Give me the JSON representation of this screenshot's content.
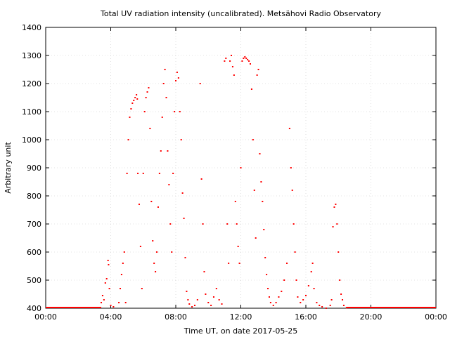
{
  "chart_data": {
    "type": "scatter",
    "title": "Total UV radiation intensity (uncalibrated). Metsähovi Radio Observatory",
    "xlabel": "Time UT, on date 2017-05-25",
    "ylabel": "Arbitrary unit",
    "xlim": [
      "00:00",
      "24:00"
    ],
    "ylim": [
      400,
      1400
    ],
    "x_ticks": [
      "00:00",
      "04:00",
      "08:00",
      "12:00",
      "16:00",
      "20:00",
      "00:00"
    ],
    "y_ticks": [
      400,
      500,
      600,
      700,
      800,
      900,
      1000,
      1100,
      1200,
      1300,
      1400
    ],
    "grid": true,
    "marker_color": "#ff0000",
    "points": [
      [
        "03:25",
        420
      ],
      [
        "03:30",
        445
      ],
      [
        "03:35",
        430
      ],
      [
        "03:40",
        490
      ],
      [
        "03:45",
        505
      ],
      [
        "03:50",
        570
      ],
      [
        "03:52",
        555
      ],
      [
        "03:55",
        470
      ],
      [
        "04:00",
        410
      ],
      [
        "04:10",
        405
      ],
      [
        "04:30",
        420
      ],
      [
        "04:35",
        470
      ],
      [
        "04:40",
        520
      ],
      [
        "04:45",
        560
      ],
      [
        "04:50",
        600
      ],
      [
        "04:55",
        420
      ],
      [
        "05:00",
        880
      ],
      [
        "05:05",
        1000
      ],
      [
        "05:10",
        1080
      ],
      [
        "05:15",
        1110
      ],
      [
        "05:20",
        1130
      ],
      [
        "05:25",
        1140
      ],
      [
        "05:30",
        1150
      ],
      [
        "05:35",
        1160
      ],
      [
        "05:38",
        1145
      ],
      [
        "05:40",
        880
      ],
      [
        "05:45",
        770
      ],
      [
        "05:50",
        620
      ],
      [
        "05:55",
        470
      ],
      [
        "06:00",
        880
      ],
      [
        "06:05",
        1100
      ],
      [
        "06:10",
        1150
      ],
      [
        "06:15",
        1170
      ],
      [
        "06:20",
        1185
      ],
      [
        "06:25",
        1040
      ],
      [
        "06:30",
        780
      ],
      [
        "06:35",
        640
      ],
      [
        "06:40",
        560
      ],
      [
        "06:45",
        530
      ],
      [
        "06:50",
        600
      ],
      [
        "06:55",
        760
      ],
      [
        "07:00",
        880
      ],
      [
        "07:05",
        960
      ],
      [
        "07:10",
        1080
      ],
      [
        "07:15",
        1200
      ],
      [
        "07:20",
        1250
      ],
      [
        "07:25",
        1150
      ],
      [
        "07:30",
        960
      ],
      [
        "07:35",
        840
      ],
      [
        "07:40",
        700
      ],
      [
        "07:45",
        600
      ],
      [
        "07:50",
        880
      ],
      [
        "07:55",
        1100
      ],
      [
        "08:00",
        1210
      ],
      [
        "08:05",
        1240
      ],
      [
        "08:10",
        1220
      ],
      [
        "08:15",
        1100
      ],
      [
        "08:20",
        1000
      ],
      [
        "08:25",
        810
      ],
      [
        "08:30",
        720
      ],
      [
        "08:35",
        580
      ],
      [
        "08:40",
        460
      ],
      [
        "08:45",
        430
      ],
      [
        "08:50",
        415
      ],
      [
        "09:00",
        405
      ],
      [
        "09:10",
        410
      ],
      [
        "09:20",
        430
      ],
      [
        "09:30",
        1200
      ],
      [
        "09:35",
        860
      ],
      [
        "09:40",
        700
      ],
      [
        "09:45",
        530
      ],
      [
        "09:50",
        450
      ],
      [
        "10:00",
        420
      ],
      [
        "10:10",
        410
      ],
      [
        "10:20",
        440
      ],
      [
        "10:30",
        470
      ],
      [
        "10:40",
        430
      ],
      [
        "10:50",
        415
      ],
      [
        "11:00",
        1280
      ],
      [
        "11:05",
        1290
      ],
      [
        "11:10",
        700
      ],
      [
        "11:15",
        560
      ],
      [
        "11:20",
        1280
      ],
      [
        "11:25",
        1300
      ],
      [
        "11:30",
        1260
      ],
      [
        "11:35",
        1230
      ],
      [
        "11:40",
        780
      ],
      [
        "11:45",
        700
      ],
      [
        "11:50",
        620
      ],
      [
        "11:55",
        560
      ],
      [
        "12:00",
        900
      ],
      [
        "12:05",
        1280
      ],
      [
        "12:10",
        1290
      ],
      [
        "12:15",
        1295
      ],
      [
        "12:20",
        1290
      ],
      [
        "12:25",
        1285
      ],
      [
        "12:30",
        1280
      ],
      [
        "12:35",
        1270
      ],
      [
        "12:40",
        1180
      ],
      [
        "12:45",
        1000
      ],
      [
        "12:50",
        820
      ],
      [
        "12:55",
        650
      ],
      [
        "13:00",
        1230
      ],
      [
        "13:05",
        1250
      ],
      [
        "13:10",
        950
      ],
      [
        "13:15",
        850
      ],
      [
        "13:20",
        780
      ],
      [
        "13:25",
        680
      ],
      [
        "13:30",
        580
      ],
      [
        "13:35",
        520
      ],
      [
        "13:40",
        470
      ],
      [
        "13:45",
        440
      ],
      [
        "13:50",
        420
      ],
      [
        "14:00",
        410
      ],
      [
        "14:10",
        420
      ],
      [
        "14:20",
        440
      ],
      [
        "14:30",
        460
      ],
      [
        "14:40",
        500
      ],
      [
        "14:50",
        560
      ],
      [
        "15:00",
        1040
      ],
      [
        "15:05",
        900
      ],
      [
        "15:10",
        820
      ],
      [
        "15:15",
        700
      ],
      [
        "15:20",
        600
      ],
      [
        "15:25",
        500
      ],
      [
        "15:30",
        440
      ],
      [
        "15:40",
        420
      ],
      [
        "15:50",
        430
      ],
      [
        "16:00",
        445
      ],
      [
        "16:10",
        480
      ],
      [
        "16:20",
        530
      ],
      [
        "16:25",
        560
      ],
      [
        "16:30",
        470
      ],
      [
        "16:40",
        420
      ],
      [
        "16:50",
        410
      ],
      [
        "17:00",
        405
      ],
      [
        "17:15",
        400
      ],
      [
        "17:30",
        410
      ],
      [
        "17:35",
        430
      ],
      [
        "17:40",
        690
      ],
      [
        "17:45",
        760
      ],
      [
        "17:50",
        770
      ],
      [
        "17:55",
        700
      ],
      [
        "18:00",
        600
      ],
      [
        "18:05",
        500
      ],
      [
        "18:10",
        450
      ],
      [
        "18:15",
        430
      ],
      [
        "18:20",
        410
      ],
      [
        "18:30",
        402
      ]
    ],
    "baseline_segments": [
      {
        "from": "00:00",
        "to": "03:25",
        "value": 400
      },
      {
        "from": "18:30",
        "to": "24:00",
        "value": 400
      }
    ]
  }
}
